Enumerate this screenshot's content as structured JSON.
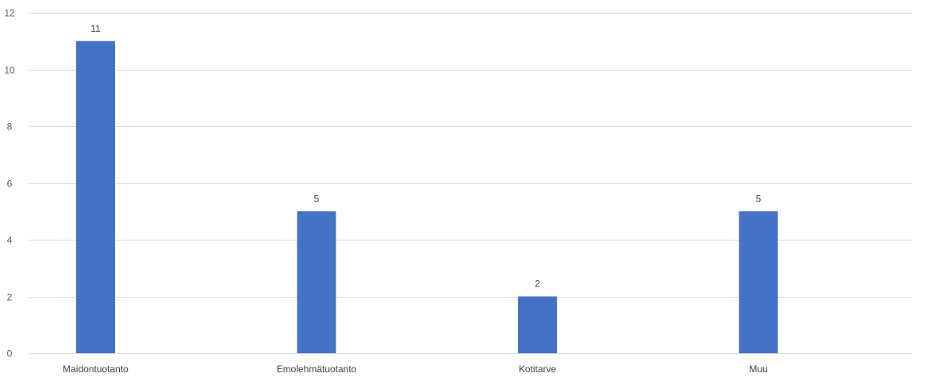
{
  "chart_data": {
    "type": "bar",
    "title": "",
    "xlabel": "",
    "ylabel": "",
    "categories": [
      "Maidontuotanto",
      "Emolehmätuotanto",
      "Kotitarve",
      "Muu"
    ],
    "series": [
      {
        "values": [
          11,
          5,
          2,
          5
        ],
        "color": "#4472c4"
      }
    ],
    "ylim": [
      0,
      12
    ],
    "yticks": [
      0,
      2,
      4,
      6,
      8,
      10,
      12
    ],
    "data_labels": [
      "11",
      "5",
      "2",
      "5"
    ],
    "grid": true,
    "legend": "none"
  }
}
